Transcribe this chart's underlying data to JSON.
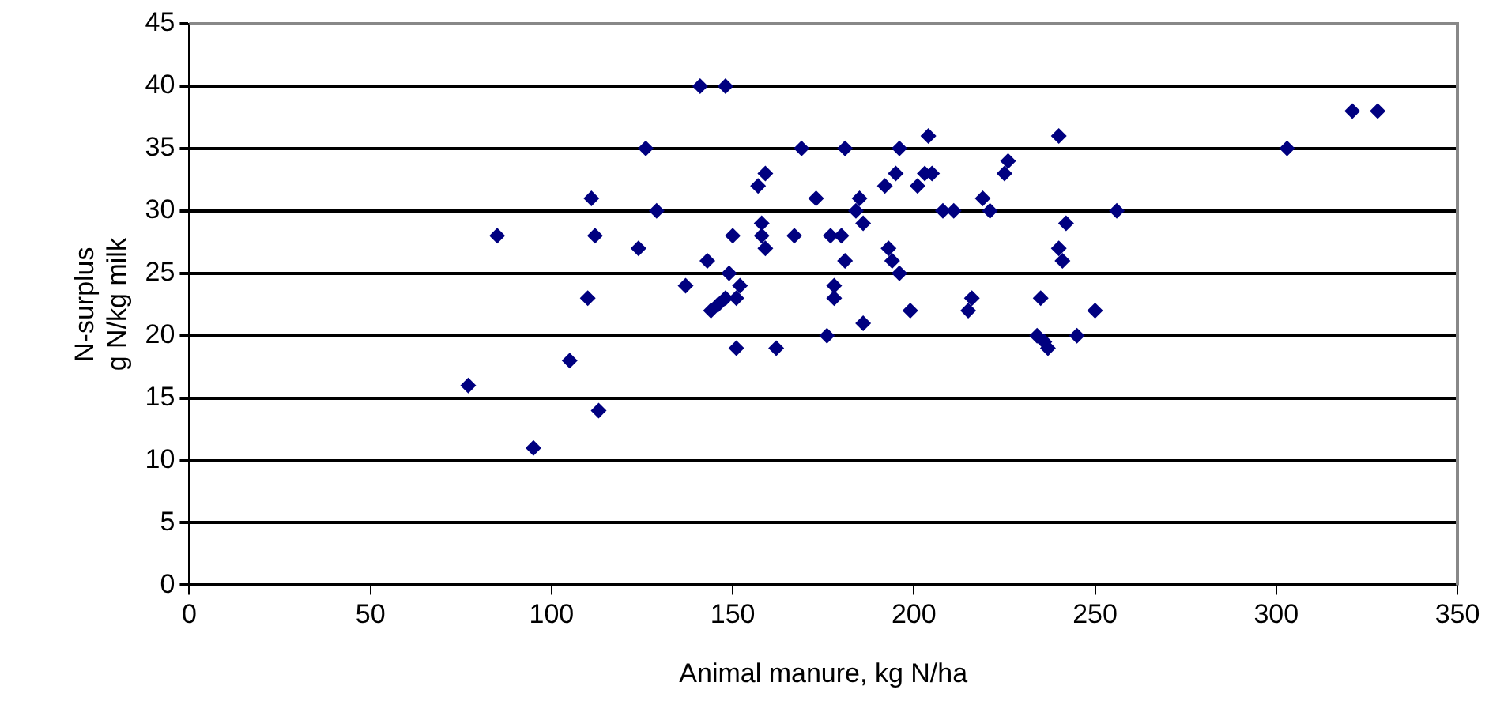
{
  "chart_data": {
    "type": "scatter",
    "xlabel": "Animal manure, kg N/ha",
    "ylabel": "N-surplus\ng N/kg milk",
    "xlim": [
      0,
      350
    ],
    "xticks": [
      0,
      50,
      100,
      150,
      200,
      250,
      300,
      350
    ],
    "ylim": [
      0,
      45
    ],
    "yticks": [
      0,
      5,
      10,
      15,
      20,
      25,
      30,
      35,
      40,
      45
    ],
    "grid": "y",
    "legend": false,
    "marker": "diamond",
    "series": [
      {
        "color": "#000080",
        "x": [
          77,
          85,
          95,
          105,
          110,
          111,
          112,
          113,
          124,
          126,
          129,
          137,
          141,
          143,
          144,
          146,
          148,
          148,
          149,
          150,
          151,
          151,
          152,
          158,
          157,
          158,
          159,
          159,
          162,
          167,
          169,
          173,
          176,
          177,
          178,
          178,
          180,
          181,
          181,
          184,
          185,
          186,
          186,
          192,
          193,
          194,
          195,
          196,
          196,
          199,
          201,
          203,
          204,
          205,
          208,
          211,
          215,
          216,
          219,
          221,
          225,
          226,
          234,
          235,
          237,
          236,
          240,
          240,
          241,
          242,
          245,
          250,
          256,
          303,
          321,
          328
        ],
        "values": [
          16,
          28,
          11,
          18,
          23,
          31,
          28,
          14,
          27,
          35,
          30,
          24,
          40,
          26,
          22,
          22.5,
          40,
          23,
          25,
          28,
          19,
          23,
          24,
          28,
          32,
          29,
          33,
          27,
          19,
          28,
          35,
          31,
          20,
          28,
          24,
          23,
          28,
          35,
          26,
          30,
          31,
          21,
          29,
          32,
          27,
          26,
          33,
          35,
          25,
          22,
          32,
          33,
          36,
          33,
          30,
          30,
          22,
          23,
          31,
          30,
          33,
          34,
          20,
          23,
          19,
          19.5,
          36,
          27,
          26,
          29,
          20,
          22,
          30,
          35,
          38,
          38
        ]
      }
    ]
  }
}
